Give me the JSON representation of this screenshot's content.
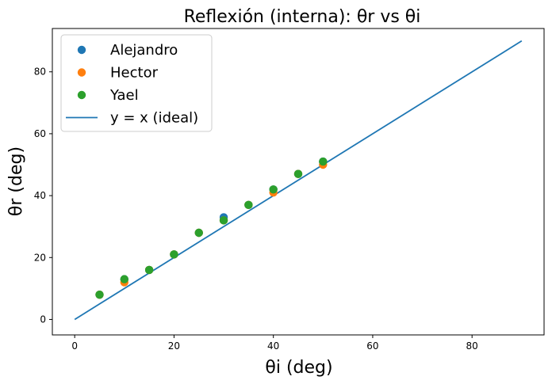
{
  "chart_data": {
    "type": "scatter",
    "title": "Reflexión (interna): θr vs θi",
    "xlabel": "θi (deg)",
    "ylabel": "θr (deg)",
    "xlim": [
      -4.5,
      94.5
    ],
    "ylim": [
      -5,
      94
    ],
    "xticks": [
      0,
      20,
      40,
      60,
      80
    ],
    "yticks": [
      0,
      20,
      40,
      60,
      80
    ],
    "grid": false,
    "legend_position": "top-left",
    "series": [
      {
        "name": "Alejandro",
        "kind": "scatter",
        "color": "#1f77b4",
        "x": [
          5,
          10,
          15,
          20,
          25,
          30,
          35,
          40,
          45,
          50
        ],
        "y": [
          8,
          13,
          16,
          21,
          28,
          33,
          37,
          42,
          47,
          51
        ]
      },
      {
        "name": "Hector",
        "kind": "scatter",
        "color": "#ff7f0e",
        "x": [
          5,
          10,
          15,
          20,
          25,
          30,
          35,
          40,
          45,
          50
        ],
        "y": [
          8,
          12,
          16,
          21,
          28,
          32,
          37,
          41,
          47,
          50
        ]
      },
      {
        "name": "Yael",
        "kind": "scatter",
        "color": "#2ca02c",
        "x": [
          5,
          10,
          15,
          20,
          25,
          30,
          35,
          40,
          45,
          50
        ],
        "y": [
          8,
          13,
          16,
          21,
          28,
          32,
          37,
          42,
          47,
          51
        ]
      },
      {
        "name": "y = x (ideal)",
        "kind": "line",
        "color": "#1f77b4",
        "x": [
          0,
          90
        ],
        "y": [
          0,
          90
        ]
      }
    ]
  }
}
